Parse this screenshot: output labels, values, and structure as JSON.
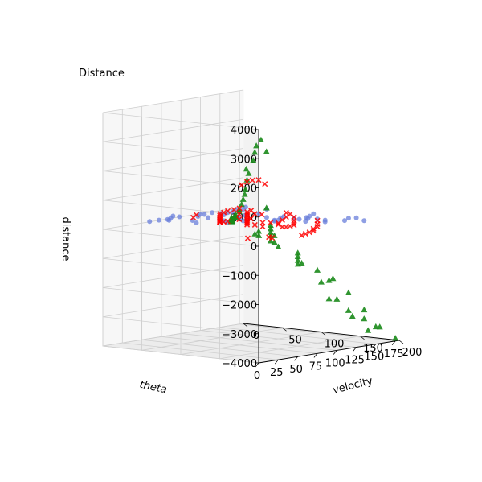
{
  "chart_data": {
    "type": "scatter",
    "projection": "3d",
    "title": "Distance",
    "xlabel": "theta",
    "ylabel": "velocity",
    "zlabel": "distance",
    "xlim": [
      0,
      180
    ],
    "ylim": [
      0,
      200
    ],
    "zlim": [
      -4000,
      4000
    ],
    "xticks": [
      0,
      25,
      50,
      75,
      100,
      125,
      150,
      175
    ],
    "yticks": [
      0,
      50,
      100,
      150,
      200
    ],
    "zticks": [
      -4000,
      -3000,
      -2000,
      -1000,
      0,
      1000,
      2000,
      3000,
      4000
    ],
    "ztick_labels": [
      "−4000",
      "−3000",
      "−2000",
      "−1000",
      "0",
      "1000",
      "2000",
      "3000",
      "4000"
    ],
    "grid": true,
    "series": [
      {
        "marker": "circle",
        "color": "#6a7fdb",
        "points": [
          [
            40,
            80,
            280
          ],
          [
            55,
            60,
            240
          ],
          [
            70,
            90,
            200
          ],
          [
            85,
            50,
            180
          ],
          [
            100,
            70,
            150
          ],
          [
            115,
            40,
            120
          ],
          [
            130,
            30,
            100
          ],
          [
            145,
            55,
            80
          ],
          [
            160,
            20,
            60
          ],
          [
            175,
            35,
            40
          ],
          [
            45,
            110,
            420
          ],
          [
            60,
            120,
            380
          ],
          [
            75,
            95,
            350
          ],
          [
            90,
            130,
            300
          ],
          [
            105,
            105,
            260
          ],
          [
            120,
            125,
            220
          ],
          [
            135,
            140,
            180
          ],
          [
            150,
            115,
            140
          ],
          [
            165,
            150,
            110
          ],
          [
            170,
            100,
            90
          ],
          [
            25,
            100,
            700
          ],
          [
            35,
            140,
            620
          ],
          [
            50,
            170,
            560
          ],
          [
            65,
            160,
            500
          ],
          [
            80,
            180,
            450
          ],
          [
            95,
            190,
            400
          ],
          [
            110,
            175,
            350
          ],
          [
            125,
            185,
            300
          ],
          [
            140,
            195,
            260
          ],
          [
            155,
            170,
            220
          ],
          [
            30,
            60,
            500
          ],
          [
            20,
            40,
            300
          ],
          [
            15,
            70,
            450
          ],
          [
            42,
            30,
            220
          ],
          [
            58,
            25,
            160
          ],
          [
            72,
            15,
            120
          ],
          [
            88,
            10,
            80
          ],
          [
            102,
            20,
            60
          ],
          [
            118,
            12,
            40
          ],
          [
            132,
            8,
            30
          ],
          [
            148,
            18,
            25
          ],
          [
            162,
            10,
            15
          ],
          [
            178,
            5,
            10
          ],
          [
            12,
            140,
            900
          ],
          [
            22,
            160,
            850
          ],
          [
            38,
            190,
            780
          ],
          [
            52,
            200,
            700
          ],
          [
            68,
            195,
            640
          ],
          [
            82,
            150,
            520
          ],
          [
            96,
            165,
            470
          ]
        ]
      },
      {
        "marker": "x",
        "color": "#ff0000",
        "points": [
          [
            10,
            190,
            2200
          ],
          [
            12,
            180,
            2150
          ],
          [
            15,
            170,
            2050
          ],
          [
            8,
            200,
            2100
          ],
          [
            18,
            160,
            1900
          ],
          [
            20,
            175,
            950
          ],
          [
            14,
            190,
            1000
          ],
          [
            25,
            150,
            850
          ],
          [
            30,
            160,
            700
          ],
          [
            35,
            140,
            600
          ],
          [
            22,
            195,
            180
          ],
          [
            28,
            185,
            150
          ],
          [
            16,
            170,
            120
          ],
          [
            40,
            120,
            450
          ],
          [
            45,
            110,
            380
          ],
          [
            50,
            100,
            320
          ],
          [
            55,
            130,
            300
          ],
          [
            60,
            90,
            250
          ],
          [
            65,
            140,
            220
          ],
          [
            70,
            80,
            200
          ],
          [
            75,
            120,
            180
          ],
          [
            80,
            70,
            160
          ],
          [
            85,
            100,
            140
          ],
          [
            90,
            60,
            120
          ],
          [
            95,
            90,
            100
          ],
          [
            100,
            50,
            80
          ],
          [
            105,
            80,
            70
          ],
          [
            110,
            40,
            60
          ],
          [
            115,
            70,
            50
          ],
          [
            120,
            30,
            40
          ],
          [
            125,
            60,
            35
          ],
          [
            130,
            20,
            30
          ],
          [
            135,
            50,
            25
          ],
          [
            140,
            15,
            20
          ],
          [
            145,
            40,
            15
          ],
          [
            150,
            10,
            12
          ],
          [
            155,
            30,
            10
          ],
          [
            160,
            8,
            8
          ],
          [
            165,
            25,
            6
          ],
          [
            170,
            5,
            5
          ],
          [
            60,
            195,
            100
          ],
          [
            75,
            185,
            60
          ],
          [
            90,
            175,
            20
          ],
          [
            105,
            165,
            -20
          ],
          [
            120,
            150,
            -60
          ],
          [
            135,
            140,
            -80
          ],
          [
            150,
            125,
            -100
          ],
          [
            165,
            110,
            -90
          ],
          [
            110,
            120,
            -40
          ],
          [
            125,
            100,
            -30
          ],
          [
            140,
            90,
            -20
          ],
          [
            155,
            80,
            -10
          ],
          [
            170,
            70,
            -5
          ],
          [
            45,
            160,
            500
          ],
          [
            55,
            170,
            420
          ],
          [
            35,
            180,
            600
          ],
          [
            85,
            150,
            150
          ],
          [
            100,
            140,
            90
          ],
          [
            115,
            130,
            30
          ],
          [
            130,
            115,
            -10
          ],
          [
            145,
            100,
            -30
          ],
          [
            160,
            85,
            -20
          ],
          [
            175,
            60,
            -10
          ],
          [
            20,
            100,
            700
          ],
          [
            26,
            90,
            550
          ]
        ]
      },
      {
        "marker": "triangle",
        "color": "#1a8a1a",
        "points": [
          [
            8,
            195,
            3600
          ],
          [
            12,
            185,
            3350
          ],
          [
            10,
            200,
            3200
          ],
          [
            15,
            180,
            3100
          ],
          [
            18,
            175,
            2800
          ],
          [
            14,
            170,
            2500
          ],
          [
            22,
            165,
            2300
          ],
          [
            25,
            160,
            2050
          ],
          [
            28,
            155,
            1700
          ],
          [
            20,
            190,
            1200
          ],
          [
            32,
            150,
            1500
          ],
          [
            35,
            145,
            1300
          ],
          [
            38,
            140,
            1100
          ],
          [
            30,
            170,
            300
          ],
          [
            40,
            135,
            900
          ],
          [
            45,
            130,
            800
          ],
          [
            50,
            120,
            650
          ],
          [
            55,
            115,
            550
          ],
          [
            60,
            105,
            450
          ],
          [
            65,
            100,
            380
          ],
          [
            70,
            95,
            300
          ],
          [
            75,
            90,
            250
          ],
          [
            80,
            85,
            200
          ],
          [
            85,
            80,
            150
          ],
          [
            90,
            75,
            100
          ],
          [
            95,
            70,
            60
          ],
          [
            100,
            65,
            30
          ],
          [
            105,
            60,
            10
          ],
          [
            110,
            55,
            -20
          ],
          [
            115,
            50,
            -50
          ],
          [
            120,
            45,
            -80
          ],
          [
            125,
            40,
            -120
          ],
          [
            130,
            35,
            -150
          ],
          [
            135,
            30,
            -180
          ],
          [
            140,
            25,
            -200
          ],
          [
            145,
            20,
            -220
          ],
          [
            150,
            15,
            -240
          ],
          [
            155,
            10,
            -250
          ],
          [
            160,
            8,
            -260
          ],
          [
            165,
            5,
            -270
          ],
          [
            100,
            150,
            -800
          ],
          [
            110,
            140,
            -1000
          ],
          [
            120,
            130,
            -1200
          ],
          [
            125,
            150,
            -1500
          ],
          [
            130,
            120,
            -1400
          ],
          [
            135,
            160,
            -1800
          ],
          [
            140,
            140,
            -2000
          ],
          [
            145,
            170,
            -2300
          ],
          [
            150,
            150,
            -2600
          ],
          [
            155,
            180,
            -2900
          ],
          [
            160,
            160,
            -3200
          ],
          [
            165,
            190,
            -3500
          ],
          [
            170,
            170,
            -3700
          ],
          [
            175,
            200,
            -3900
          ],
          [
            110,
            180,
            -1700
          ],
          [
            95,
            160,
            -1100
          ],
          [
            115,
            100,
            -600
          ],
          [
            125,
            90,
            -500
          ],
          [
            135,
            80,
            -450
          ],
          [
            145,
            70,
            -400
          ],
          [
            155,
            60,
            -350
          ],
          [
            120,
            170,
            -2400
          ],
          [
            130,
            185,
            -2800
          ],
          [
            140,
            195,
            -3100
          ],
          [
            150,
            200,
            -3400
          ],
          [
            100,
            100,
            -350
          ],
          [
            105,
            120,
            -700
          ],
          [
            90,
            130,
            -450
          ],
          [
            85,
            110,
            -200
          ],
          [
            80,
            140,
            -150
          ]
        ]
      }
    ]
  }
}
